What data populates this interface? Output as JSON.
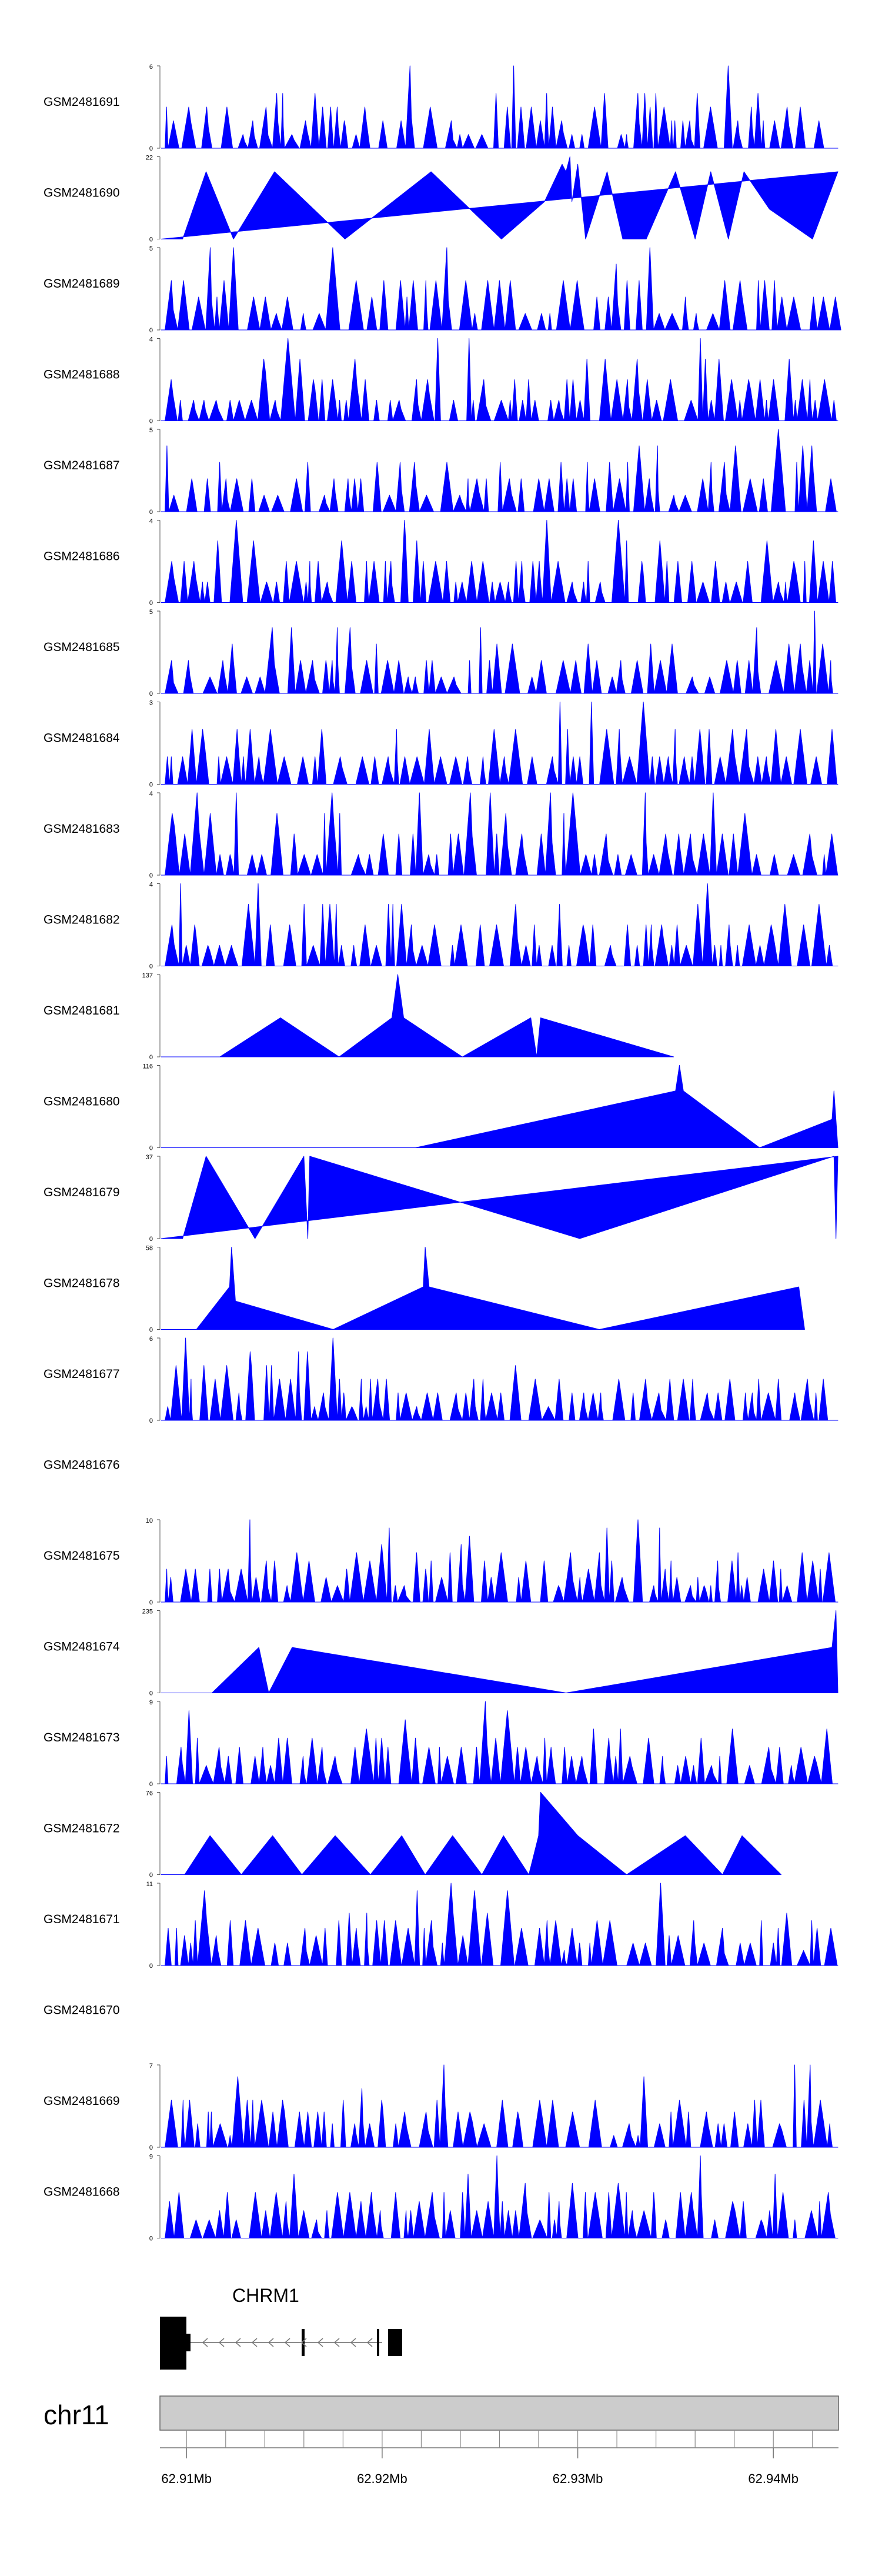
{
  "chart_data": {
    "type": "area",
    "title": "",
    "region": {
      "chromosome": "chr11",
      "start_mb": 62.9087,
      "end_mb": 62.9433,
      "ticks": [
        "62.91Mb",
        "62.92Mb",
        "62.93Mb",
        "62.94Mb"
      ],
      "tick_values": [
        62.91,
        62.92,
        62.93,
        62.94
      ]
    },
    "fill_color": "#0000ff",
    "gene": {
      "name": "CHRM1",
      "strand": "-"
    },
    "tracks": [
      {
        "name": "GSM2481691",
        "ymax": "6",
        "ymax_value": 6,
        "empty": false,
        "shape": "dense",
        "seed": 11
      },
      {
        "name": "GSM2481690",
        "ymax": "22",
        "ymax_value": 22,
        "empty": false,
        "shape": "sparse",
        "points": [
          [
            62.9087,
            0
          ],
          [
            62.9098,
            0
          ],
          [
            62.911,
            18
          ],
          [
            62.9124,
            0
          ],
          [
            62.9145,
            18
          ],
          [
            62.9181,
            0
          ],
          [
            62.9225,
            18
          ],
          [
            62.9261,
            0
          ],
          [
            62.9283,
            10
          ],
          [
            62.9292,
            20
          ],
          [
            62.9294,
            18
          ],
          [
            62.9296,
            22
          ],
          [
            62.9297,
            10
          ],
          [
            62.93,
            20
          ],
          [
            62.9304,
            0
          ],
          [
            62.9315,
            18
          ],
          [
            62.9323,
            0
          ],
          [
            62.9335,
            0
          ],
          [
            62.935,
            18
          ],
          [
            62.936,
            0
          ],
          [
            62.9368,
            18
          ],
          [
            62.9377,
            0
          ],
          [
            62.9385,
            18
          ],
          [
            62.9398,
            8
          ],
          [
            62.942,
            0
          ],
          [
            62.9433,
            18
          ]
        ]
      },
      {
        "name": "GSM2481689",
        "ymax": "5",
        "ymax_value": 5,
        "empty": false,
        "shape": "dense",
        "seed": 23
      },
      {
        "name": "GSM2481688",
        "ymax": "4",
        "ymax_value": 4,
        "empty": false,
        "shape": "dense",
        "seed": 37
      },
      {
        "name": "GSM2481687",
        "ymax": "5",
        "ymax_value": 5,
        "empty": false,
        "shape": "dense",
        "seed": 41
      },
      {
        "name": "GSM2481686",
        "ymax": "4",
        "ymax_value": 4,
        "empty": false,
        "shape": "dense",
        "seed": 53
      },
      {
        "name": "GSM2481685",
        "ymax": "5",
        "ymax_value": 5,
        "empty": false,
        "shape": "dense",
        "seed": 67
      },
      {
        "name": "GSM2481684",
        "ymax": "3",
        "ymax_value": 3,
        "empty": false,
        "shape": "dense",
        "seed": 71
      },
      {
        "name": "GSM2481683",
        "ymax": "4",
        "ymax_value": 4,
        "empty": false,
        "shape": "dense",
        "seed": 83
      },
      {
        "name": "GSM2481682",
        "ymax": "4",
        "ymax_value": 4,
        "empty": false,
        "shape": "dense",
        "seed": 97
      },
      {
        "name": "GSM2481681",
        "ymax": "137",
        "ymax_value": 137,
        "empty": false,
        "shape": "sparse",
        "points": [
          [
            62.9087,
            0
          ],
          [
            62.9117,
            0
          ],
          [
            62.9148,
            65
          ],
          [
            62.9178,
            0
          ],
          [
            62.9205,
            65
          ],
          [
            62.9208,
            137
          ],
          [
            62.9211,
            65
          ],
          [
            62.9241,
            0
          ],
          [
            62.9276,
            65
          ],
          [
            62.9279,
            0
          ],
          [
            62.9281,
            65
          ],
          [
            62.9349,
            0
          ]
        ]
      },
      {
        "name": "GSM2481680",
        "ymax": "116",
        "ymax_value": 116,
        "empty": false,
        "shape": "sparse",
        "points": [
          [
            62.9087,
            0
          ],
          [
            62.9217,
            0
          ],
          [
            62.935,
            80
          ],
          [
            62.9352,
            116
          ],
          [
            62.9354,
            80
          ],
          [
            62.9393,
            0
          ],
          [
            62.943,
            40
          ],
          [
            62.9431,
            80
          ],
          [
            62.9433,
            0
          ]
        ]
      },
      {
        "name": "GSM2481679",
        "ymax": "37",
        "ymax_value": 37,
        "empty": false,
        "shape": "sparse",
        "points": [
          [
            62.9087,
            0
          ],
          [
            62.9098,
            0
          ],
          [
            62.911,
            37
          ],
          [
            62.9135,
            0
          ],
          [
            62.916,
            37
          ],
          [
            62.9162,
            0
          ],
          [
            62.9163,
            37
          ],
          [
            62.9301,
            0
          ],
          [
            62.9431,
            37
          ],
          [
            62.9432,
            0
          ],
          [
            62.9433,
            37
          ]
        ]
      },
      {
        "name": "GSM2481678",
        "ymax": "58",
        "ymax_value": 58,
        "empty": false,
        "shape": "sparse",
        "points": [
          [
            62.9087,
            0
          ],
          [
            62.9105,
            0
          ],
          [
            62.9122,
            30
          ],
          [
            62.9123,
            58
          ],
          [
            62.9125,
            20
          ],
          [
            62.9175,
            0
          ],
          [
            62.9221,
            30
          ],
          [
            62.9222,
            58
          ],
          [
            62.9224,
            30
          ],
          [
            62.9311,
            0
          ],
          [
            62.9413,
            30
          ],
          [
            62.9416,
            0
          ]
        ]
      },
      {
        "name": "GSM2481677",
        "ymax": "6",
        "ymax_value": 6,
        "empty": false,
        "shape": "dense",
        "seed": 101
      },
      {
        "name": "GSM2481676",
        "ymax": "",
        "ymax_value": 0,
        "empty": true
      },
      {
        "name": "GSM2481675",
        "ymax": "10",
        "ymax_value": 10,
        "empty": false,
        "shape": "dense",
        "seed": 113
      },
      {
        "name": "GSM2481674",
        "ymax": "235",
        "ymax_value": 235,
        "empty": false,
        "shape": "sparse",
        "points": [
          [
            62.9087,
            0
          ],
          [
            62.9113,
            0
          ],
          [
            62.9137,
            130
          ],
          [
            62.9142,
            0
          ],
          [
            62.9154,
            130
          ],
          [
            62.9294,
            0
          ],
          [
            62.943,
            130
          ],
          [
            62.9432,
            235
          ],
          [
            62.9433,
            0
          ]
        ]
      },
      {
        "name": "GSM2481673",
        "ymax": "9",
        "ymax_value": 9,
        "empty": false,
        "shape": "dense",
        "seed": 127
      },
      {
        "name": "GSM2481672",
        "ymax": "76",
        "ymax_value": 76,
        "empty": false,
        "shape": "sparse",
        "points": [
          [
            62.9087,
            0
          ],
          [
            62.9099,
            0
          ],
          [
            62.9112,
            36
          ],
          [
            62.9128,
            0
          ],
          [
            62.9144,
            36
          ],
          [
            62.9159,
            0
          ],
          [
            62.9176,
            36
          ],
          [
            62.9194,
            0
          ],
          [
            62.921,
            36
          ],
          [
            62.9222,
            0
          ],
          [
            62.9236,
            36
          ],
          [
            62.9251,
            0
          ],
          [
            62.9262,
            36
          ],
          [
            62.9275,
            0
          ],
          [
            62.928,
            36
          ],
          [
            62.9281,
            76
          ],
          [
            62.93,
            36
          ],
          [
            62.9325,
            0
          ],
          [
            62.9355,
            36
          ],
          [
            62.9374,
            0
          ],
          [
            62.9384,
            36
          ],
          [
            62.9404,
            0
          ]
        ]
      },
      {
        "name": "GSM2481671",
        "ymax": "11",
        "ymax_value": 11,
        "empty": false,
        "shape": "dense",
        "seed": 131
      },
      {
        "name": "GSM2481670",
        "ymax": "",
        "ymax_value": 0,
        "empty": true
      },
      {
        "name": "GSM2481669",
        "ymax": "7",
        "ymax_value": 7,
        "empty": false,
        "shape": "dense",
        "seed": 139
      },
      {
        "name": "GSM2481668",
        "ymax": "9",
        "ymax_value": 9,
        "empty": false,
        "shape": "dense",
        "seed": 149
      }
    ]
  }
}
